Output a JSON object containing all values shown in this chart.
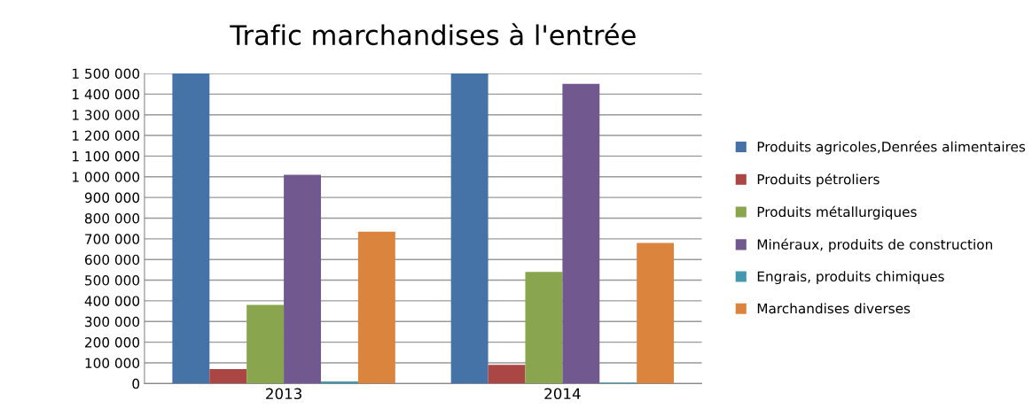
{
  "chart_data": {
    "type": "bar",
    "title": "Trafic marchandises à l'entrée",
    "categories": [
      "2013",
      "2014"
    ],
    "series": [
      {
        "name": "Produits agricoles,Denrées alimentaires",
        "color": "#4572a7",
        "values": [
          1500000,
          1500000
        ]
      },
      {
        "name": "Produits pétroliers",
        "color": "#aa4643",
        "values": [
          70000,
          90000
        ]
      },
      {
        "name": "Produits métallurgiques",
        "color": "#89a54e",
        "values": [
          380000,
          540000
        ]
      },
      {
        "name": "Minéraux, produits de construction",
        "color": "#71588f",
        "values": [
          1010000,
          1450000
        ]
      },
      {
        "name": "Engrais, produits chimiques",
        "color": "#4198af",
        "values": [
          10000,
          5000
        ]
      },
      {
        "name": "Marchandises diverses",
        "color": "#db843d",
        "values": [
          735000,
          680000
        ]
      }
    ],
    "ylim": [
      0,
      1500000
    ],
    "yticks": [
      0,
      {
        "value": 100000,
        "label": "100 000"
      },
      {
        "value": 200000,
        "label": "200 000"
      },
      {
        "value": 300000,
        "label": "300 000"
      },
      {
        "value": 400000,
        "label": "400 000"
      },
      {
        "value": 500000,
        "label": "500 000"
      },
      {
        "value": 600000,
        "label": "600 000"
      },
      {
        "value": 700000,
        "label": "700 000"
      },
      {
        "value": 800000,
        "label": "800 000"
      },
      {
        "value": 900000,
        "label": "900 000"
      },
      {
        "value": 1000000,
        "label": "1 000 000"
      },
      {
        "value": 1100000,
        "label": "1 100 000"
      },
      {
        "value": 1200000,
        "label": "1 200 000"
      },
      {
        "value": 1300000,
        "label": "1 300 000"
      },
      {
        "value": 1400000,
        "label": "1 400 000"
      },
      {
        "value": 1500000,
        "label": "1 500 000"
      }
    ],
    "grid": "y",
    "legend": "right"
  }
}
